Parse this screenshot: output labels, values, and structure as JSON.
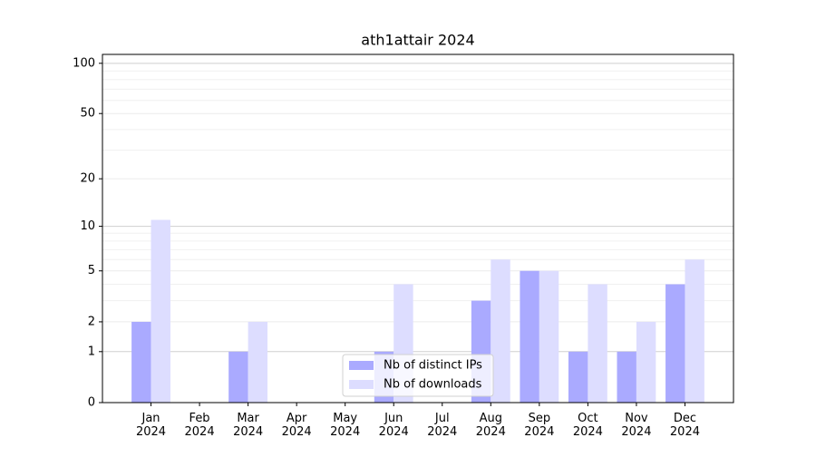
{
  "chart_data": {
    "type": "bar",
    "title": "ath1attair 2024",
    "categories": [
      [
        "Jan",
        "2024"
      ],
      [
        "Feb",
        "2024"
      ],
      [
        "Mar",
        "2024"
      ],
      [
        "Apr",
        "2024"
      ],
      [
        "May",
        "2024"
      ],
      [
        "Jun",
        "2024"
      ],
      [
        "Jul",
        "2024"
      ],
      [
        "Aug",
        "2024"
      ],
      [
        "Sep",
        "2024"
      ],
      [
        "Oct",
        "2024"
      ],
      [
        "Nov",
        "2024"
      ],
      [
        "Dec",
        "2024"
      ]
    ],
    "series": [
      {
        "name": "Nb of distinct IPs",
        "color": "#aaaaff",
        "values": [
          2,
          0,
          1,
          0,
          0,
          1,
          0,
          3,
          5,
          1,
          1,
          4
        ]
      },
      {
        "name": "Nb of downloads",
        "color": "#ddddff",
        "values": [
          11,
          0,
          2,
          0,
          0,
          4,
          0,
          6,
          5,
          4,
          2,
          6
        ]
      }
    ],
    "y_scale": "log1p",
    "ylim": [
      0,
      113
    ],
    "yticks": [
      0,
      1,
      2,
      5,
      10,
      20,
      50,
      100
    ],
    "minor_yticks": [
      3,
      4,
      6,
      7,
      8,
      9,
      30,
      40,
      60,
      70,
      80,
      90
    ],
    "grid": true,
    "legend": "lower center"
  }
}
